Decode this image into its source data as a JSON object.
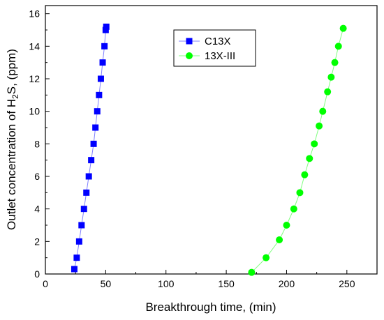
{
  "chart_data": {
    "type": "scatter",
    "xlabel": "Breakthrough time, (min)",
    "ylabel_parts": [
      "Outlet concentration of H",
      "2",
      "S, (ppm)"
    ],
    "xlim": [
      0,
      275
    ],
    "ylim": [
      0,
      16.5
    ],
    "xticks": [
      0,
      50,
      100,
      150,
      200,
      250
    ],
    "yticks": [
      0,
      2,
      4,
      6,
      8,
      10,
      12,
      14,
      16
    ],
    "grid": false,
    "legend_position": "top-center",
    "series": [
      {
        "name": "C13X",
        "marker": "square",
        "color": "#0000ff",
        "line_color": "#8080ff",
        "x": [
          24,
          26,
          28,
          30,
          32,
          34,
          36,
          38,
          40,
          41.5,
          43,
          44.5,
          46,
          47.5,
          49,
          50,
          50.5
        ],
        "y": [
          0.3,
          1.0,
          2.0,
          3.0,
          4.0,
          5.0,
          6.0,
          7.0,
          8.0,
          9.0,
          10.0,
          11.0,
          12.0,
          13.0,
          14.0,
          15.0,
          15.2
        ]
      },
      {
        "name": "13X-III",
        "marker": "circle",
        "color": "#00ff00",
        "line_color": "#80ff80",
        "x": [
          171,
          183,
          194,
          200,
          206,
          211,
          215,
          219,
          223,
          227,
          230,
          234,
          237,
          240,
          243,
          247
        ],
        "y": [
          0.1,
          1.0,
          2.1,
          3.0,
          4.0,
          5.0,
          6.1,
          7.1,
          8.0,
          9.1,
          10.0,
          11.2,
          12.1,
          13.0,
          14.0,
          15.1
        ]
      }
    ]
  }
}
